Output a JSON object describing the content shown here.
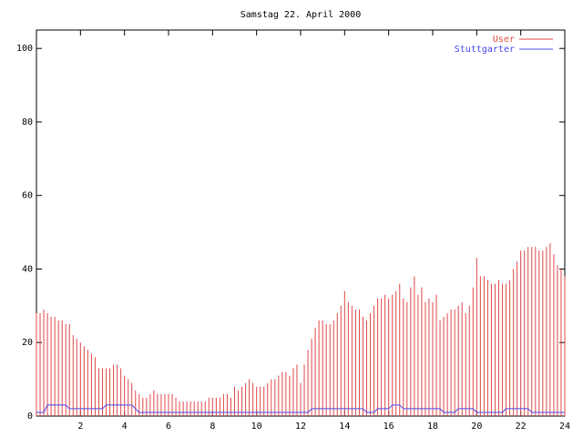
{
  "chart_data": {
    "type": "impulse-line",
    "title": "Samstag 22. April 2000",
    "x": [
      0,
      0.167,
      0.333,
      0.5,
      0.667,
      0.833,
      1,
      1.167,
      1.333,
      1.5,
      1.667,
      1.833,
      2,
      2.167,
      2.333,
      2.5,
      2.667,
      2.833,
      3,
      3.167,
      3.333,
      3.5,
      3.667,
      3.833,
      4,
      4.167,
      4.333,
      4.5,
      4.667,
      4.833,
      5,
      5.167,
      5.333,
      5.5,
      5.667,
      5.833,
      6,
      6.167,
      6.333,
      6.5,
      6.667,
      6.833,
      7,
      7.167,
      7.333,
      7.5,
      7.667,
      7.833,
      8,
      8.167,
      8.333,
      8.5,
      8.667,
      8.833,
      9,
      9.167,
      9.333,
      9.5,
      9.667,
      9.833,
      10,
      10.167,
      10.333,
      10.5,
      10.667,
      10.833,
      11,
      11.167,
      11.333,
      11.5,
      11.667,
      11.833,
      12,
      12.167,
      12.333,
      12.5,
      12.667,
      12.833,
      13,
      13.167,
      13.333,
      13.5,
      13.667,
      13.833,
      14,
      14.167,
      14.333,
      14.5,
      14.667,
      14.833,
      15,
      15.167,
      15.333,
      15.5,
      15.667,
      15.833,
      16,
      16.167,
      16.333,
      16.5,
      16.667,
      16.833,
      17,
      17.167,
      17.333,
      17.5,
      17.667,
      17.833,
      18,
      18.167,
      18.333,
      18.5,
      18.667,
      18.833,
      19,
      19.167,
      19.333,
      19.5,
      19.667,
      19.833,
      20,
      20.167,
      20.333,
      20.5,
      20.667,
      20.833,
      21,
      21.167,
      21.333,
      21.5,
      21.667,
      21.833,
      22,
      22.167,
      22.333,
      22.5,
      22.667,
      22.833,
      23,
      23.167,
      23.333,
      23.5,
      23.667,
      23.833,
      24
    ],
    "series": [
      {
        "name": "User",
        "color": "#e04848",
        "style": "impulses",
        "values": [
          28,
          28,
          29,
          28,
          27,
          27,
          26,
          26,
          25,
          25,
          22,
          21,
          20,
          19,
          18,
          17,
          16,
          13,
          13,
          13,
          13,
          14,
          14,
          13,
          11,
          10,
          9,
          7,
          6,
          5,
          5,
          6,
          7,
          6,
          6,
          6,
          6,
          6,
          5,
          4,
          4,
          4,
          4,
          4,
          4,
          4,
          4,
          5,
          5,
          5,
          5,
          6,
          6,
          5,
          8,
          7,
          8,
          9,
          10,
          9,
          8,
          8,
          8,
          9,
          10,
          10,
          11,
          12,
          12,
          11,
          13,
          14,
          9,
          14,
          18,
          21,
          24,
          26,
          26,
          25,
          25,
          26,
          28,
          30,
          34,
          31,
          30,
          29,
          29,
          27,
          26,
          28,
          30,
          32,
          32,
          33,
          32,
          33,
          34,
          36,
          32,
          31,
          35,
          38,
          33,
          35,
          31,
          32,
          31,
          33,
          26,
          27,
          28,
          29,
          29,
          30,
          31,
          28,
          30,
          35,
          43,
          38,
          38,
          37,
          36,
          36,
          37,
          36,
          36,
          37,
          40,
          42,
          45,
          45,
          46,
          46,
          46,
          45,
          45,
          46,
          47,
          44,
          41,
          40,
          38
        ]
      },
      {
        "name": "Stuttgarter",
        "color": "#4848f0",
        "style": "lines",
        "values": [
          1,
          1,
          1,
          3,
          3,
          3,
          3,
          3,
          3,
          2,
          2,
          2,
          2,
          2,
          2,
          2,
          2,
          2,
          2,
          3,
          3,
          3,
          3,
          3,
          3,
          3,
          3,
          2,
          1,
          1,
          1,
          1,
          1,
          1,
          1,
          1,
          1,
          1,
          1,
          1,
          1,
          1,
          1,
          1,
          1,
          1,
          1,
          1,
          1,
          1,
          1,
          1,
          1,
          1,
          1,
          1,
          1,
          1,
          1,
          1,
          1,
          1,
          1,
          1,
          1,
          1,
          1,
          1,
          1,
          1,
          1,
          1,
          1,
          1,
          1,
          2,
          2,
          2,
          2,
          2,
          2,
          2,
          2,
          2,
          2,
          2,
          2,
          2,
          2,
          2,
          1,
          1,
          1,
          2,
          2,
          2,
          2,
          3,
          3,
          3,
          2,
          2,
          2,
          2,
          2,
          2,
          2,
          2,
          2,
          2,
          2,
          1,
          1,
          1,
          1,
          2,
          2,
          2,
          2,
          2,
          1,
          1,
          1,
          1,
          1,
          1,
          1,
          1,
          2,
          2,
          2,
          2,
          2,
          2,
          2,
          1,
          1,
          1,
          1,
          1,
          1,
          1,
          1,
          1,
          1
        ]
      }
    ],
    "xlim": [
      0,
      24
    ],
    "ylim": [
      0,
      105
    ],
    "xticks": [
      2,
      4,
      6,
      8,
      10,
      12,
      14,
      16,
      18,
      20,
      22,
      24
    ],
    "yticks": [
      0,
      20,
      40,
      60,
      80,
      100
    ],
    "legend": "top-right"
  }
}
